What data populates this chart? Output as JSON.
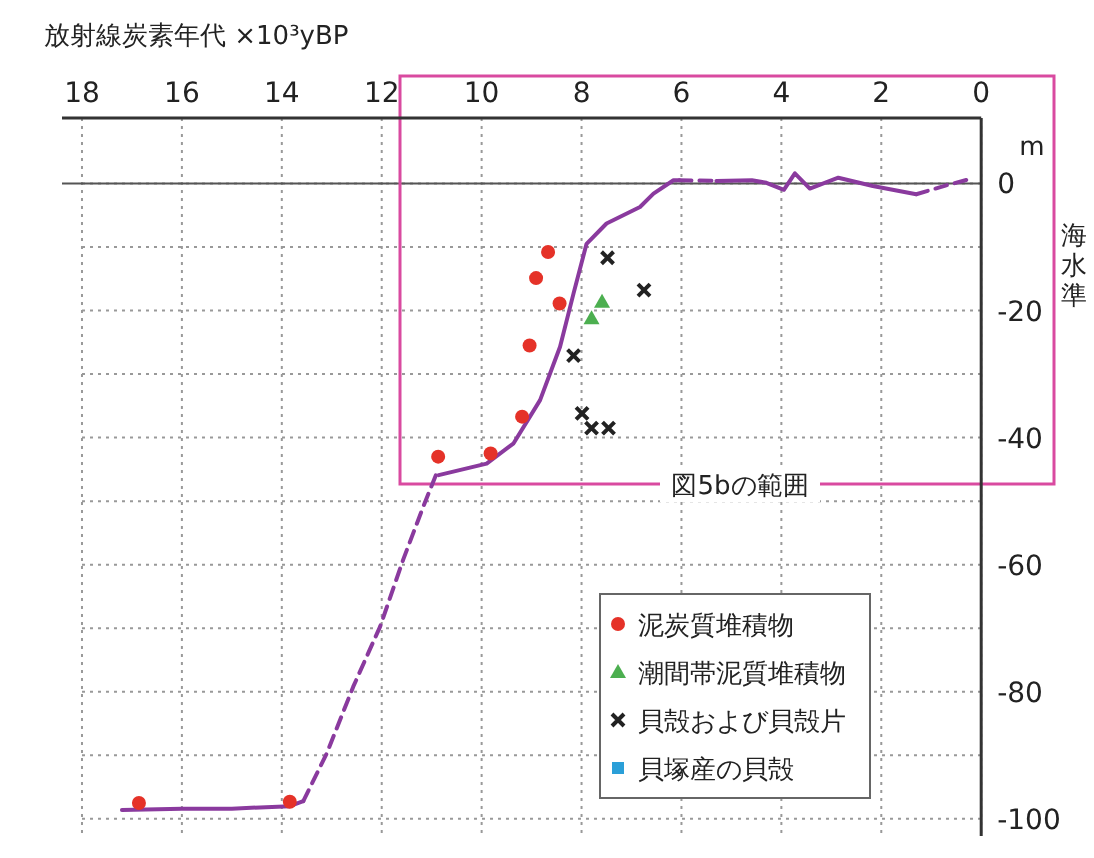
{
  "chart_data": {
    "type": "scatter",
    "title": "放射線炭素年代 ×10³yBP",
    "ylabel": "海水準",
    "xlim": [
      18.4,
      0
    ],
    "xticks": [
      18,
      16,
      14,
      12,
      10,
      8,
      6,
      4,
      2,
      0
    ],
    "ylim": [
      -102.7,
      10.3
    ],
    "yticks": [
      {
        "value": 0,
        "label": "0"
      },
      {
        "value": -10,
        "label": null
      },
      {
        "value": -20,
        "label": "-20"
      },
      {
        "value": -30,
        "label": null
      },
      {
        "value": -40,
        "label": "-40"
      },
      {
        "value": -50,
        "label": null
      },
      {
        "value": -60,
        "label": "-60"
      },
      {
        "value": -70,
        "label": null
      },
      {
        "value": -80,
        "label": "-80"
      },
      {
        "value": -90,
        "label": null
      },
      {
        "value": -100,
        "label": "-100"
      }
    ],
    "grid": true,
    "legend": "bottom right",
    "ref_lines": [
      {
        "axis": "y",
        "value": 0,
        "color": "#555555",
        "line_style": "solid"
      }
    ],
    "annotations": [
      "m",
      "図5bの範囲"
    ],
    "series": [
      {
        "type": "line",
        "line_style": "solid",
        "color": "#8a3a9e",
        "x": [
          17.2,
          16.0,
          15.0,
          13.84,
          13.57
        ],
        "values": [
          -98.6,
          -98.4,
          -98.4,
          -98.0,
          -97.2
        ]
      },
      {
        "type": "line",
        "line_style": "dashed",
        "color": "#8a3a9e",
        "x": [
          13.57,
          13.1,
          12.57,
          12.03,
          11.57,
          11.17,
          10.9
        ],
        "values": [
          -97.2,
          -89.7,
          -79.2,
          -69.7,
          -59.2,
          -50.9,
          -45.6
        ]
      },
      {
        "type": "line",
        "line_style": "solid",
        "color": "#8a3a9e",
        "x": [
          10.86,
          9.9,
          9.36,
          8.83,
          8.43,
          8.16,
          7.9,
          7.5,
          6.83,
          6.56,
          6.16,
          6.04
        ],
        "values": [
          -45.9,
          -44.1,
          -40.9,
          -34.1,
          -25.7,
          -17.3,
          -9.5,
          -6.3,
          -3.7,
          -1.6,
          0.5,
          0.5
        ]
      },
      {
        "type": "line",
        "line_style": "dashed",
        "color": "#8a3a9e",
        "x": [
          6.04,
          5.3
        ],
        "values": [
          0.5,
          0.4
        ]
      },
      {
        "type": "line",
        "line_style": "solid",
        "color": "#8a3a9e",
        "x": [
          5.3,
          4.59,
          4.3,
          3.95,
          3.73,
          3.43,
          2.86,
          2.17,
          1.3
        ],
        "values": [
          0.4,
          0.5,
          0.1,
          -1.0,
          1.6,
          -0.8,
          0.9,
          -0.4,
          -1.7
        ]
      },
      {
        "type": "line",
        "line_style": "dashed",
        "color": "#8a3a9e",
        "x": [
          1.3,
          0.7,
          0.22
        ],
        "values": [
          -1.7,
          -0.3,
          0.7
        ]
      },
      {
        "name": "泥炭質堆積物",
        "marker": "circle",
        "color": "#e53228",
        "x": [
          16.86,
          13.84,
          10.87,
          9.82,
          9.19,
          9.04,
          8.91,
          8.67,
          8.44
        ],
        "values": [
          -97.5,
          -97.3,
          -43.0,
          -42.5,
          -36.7,
          -25.5,
          -14.9,
          -10.8,
          -18.9
        ]
      },
      {
        "name": "潮間帯泥質堆積物",
        "marker": "triangle",
        "color": "#4caf50",
        "x": [
          7.59,
          7.8
        ],
        "values": [
          -18.6,
          -21.2
        ]
      },
      {
        "name": "貝殻および貝殻片",
        "marker": "cross",
        "color": "#222222",
        "x": [
          7.48,
          6.75,
          8.16,
          7.99,
          7.8,
          7.46
        ],
        "values": [
          -11.7,
          -16.8,
          -27.1,
          -36.2,
          -38.5,
          -38.5
        ]
      },
      {
        "name": "貝塚産の貝殻",
        "marker": "square",
        "color": "#2a9fd8"
      }
    ]
  }
}
